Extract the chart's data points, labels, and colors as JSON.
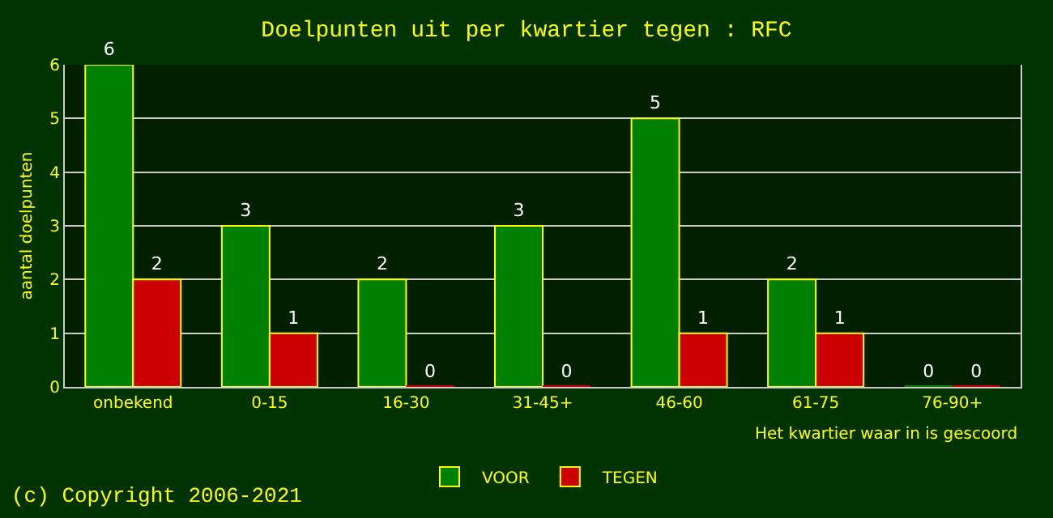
{
  "chart_data": {
    "type": "bar",
    "title": "Doelpunten uit per kwartier tegen : RFC",
    "xlabel": "Het kwartier waar in is gescoord",
    "ylabel": "aantal doelpunten",
    "categories": [
      "onbekend",
      "0-15",
      "16-30",
      "31-45+",
      "46-60",
      "61-75",
      "76-90+"
    ],
    "series": [
      {
        "name": "VOOR",
        "color": "#008000",
        "values": [
          6,
          3,
          2,
          3,
          5,
          2,
          0
        ]
      },
      {
        "name": "TEGEN",
        "color": "#cc0000",
        "values": [
          2,
          1,
          0,
          0,
          1,
          1,
          0
        ]
      }
    ],
    "ylim": [
      0,
      6
    ],
    "yticks": [
      0,
      1,
      2,
      3,
      4,
      5,
      6
    ],
    "grid": "y",
    "legend": "bottom",
    "data_labels": true,
    "annotations": [
      "(c) Copyright 2006-2021"
    ]
  }
}
